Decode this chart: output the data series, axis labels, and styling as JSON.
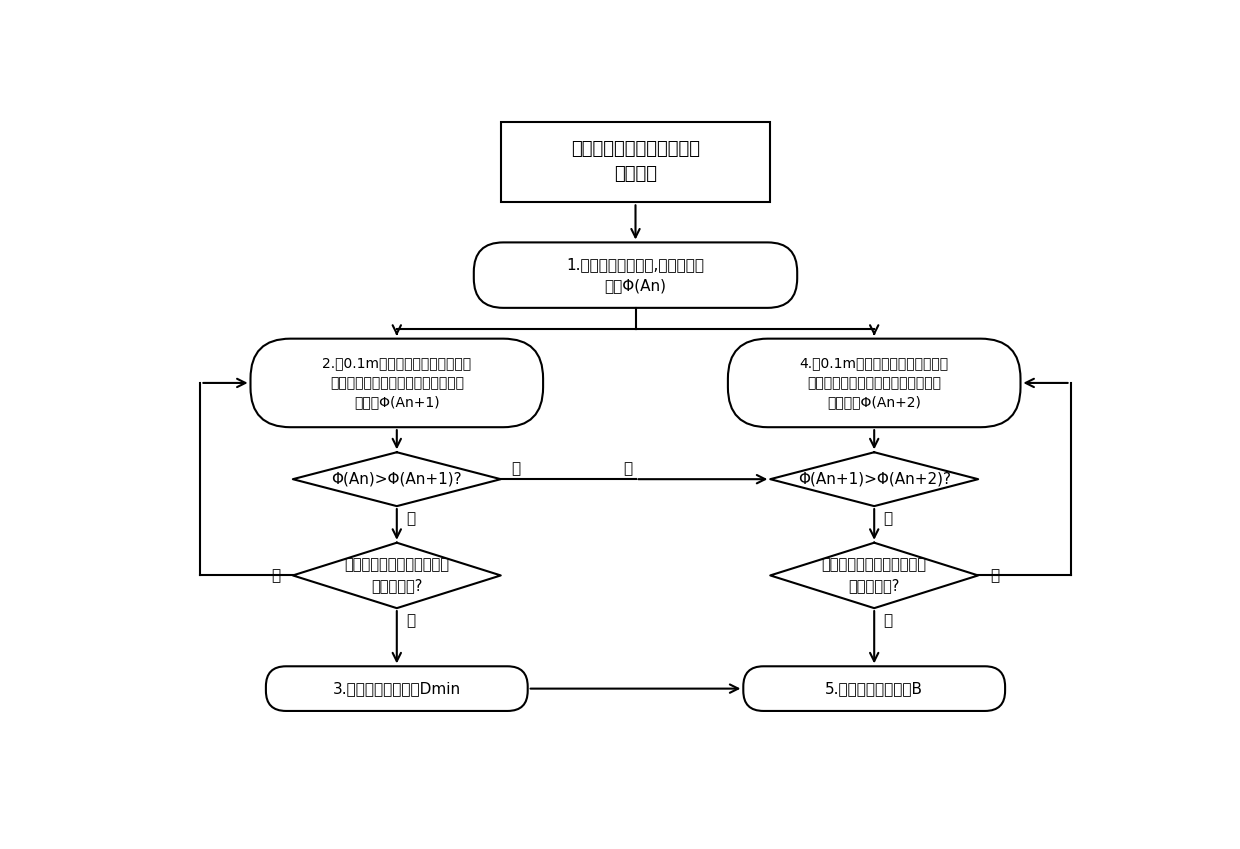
{
  "title": "薄煤层半煤岩巷道断面尺寸\n确定方法",
  "box1_text": "1.确定辅助运输方式,计算初始净\n流量Φ(An)",
  "box2_text": "2.以0.1m为基准对设备进行循环降\n高以确定巷道最小高度，计算降高后\n净流量Φ(An+1)",
  "box4_text": "4.以0.1m为基准对设备进行循环加\n宽以确定巷道最优宽高比，计算加宽\n后净流量Φ(An+2)",
  "diamond3_text": "Φ(An)>Φ(An+1)?",
  "diamond4_text": "Φ(An+1)>Φ(An+2)?",
  "diamond5_text": "是否满足《规程》中关于行\n人高度要求?",
  "diamond6_text": "是否满足巷道极限跨距与矿\n井通风要求?",
  "box3_text": "3.输出巷道最小高度Dmin",
  "box5_text": "5.输出巷道合适宽度B",
  "bg_color": "#ffffff",
  "box_color": "#ffffff",
  "box_edge": "#000000",
  "text_color": "#000000",
  "arrow_color": "#000000"
}
